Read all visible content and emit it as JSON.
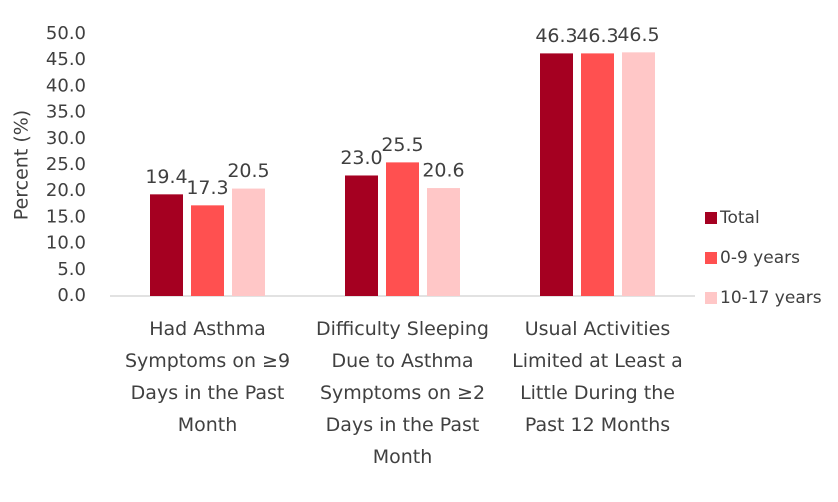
{
  "chart_data": {
    "type": "bar",
    "categories": [
      "Had Asthma Symptoms on ≥9 Days in the Past Month",
      "Difficulty Sleeping Due to Asthma Symptoms on ≥2 Days in the Past Month",
      "Usual Activities Limited at Least a Little During the Past 12 Months"
    ],
    "y_label": "Percent (%)",
    "series": [
      {
        "name": "Total",
        "color": "#a50021",
        "values": [
          19.4,
          23.0,
          46.3
        ],
        "value_labels": [
          "19.4",
          "23.0",
          "46.3"
        ]
      },
      {
        "name": "0-9 years",
        "color": "#ff5050",
        "values": [
          17.3,
          25.5,
          46.3
        ],
        "value_labels": [
          "17.3",
          "25.5",
          "46.3"
        ]
      },
      {
        "name": "10-17 years",
        "color": "#ffc7c7",
        "values": [
          20.5,
          20.6,
          46.5
        ],
        "value_labels": [
          "20.5",
          "20.6",
          "46.5"
        ]
      }
    ],
    "ylim": [
      0,
      50
    ],
    "yticks": [
      {
        "value": 0,
        "label": "0.0"
      },
      {
        "value": 5,
        "label": "5.0"
      },
      {
        "value": 10,
        "label": "10.0"
      },
      {
        "value": 15,
        "label": "15.0"
      },
      {
        "value": 20,
        "label": "20.0"
      },
      {
        "value": 25,
        "label": "25.0"
      },
      {
        "value": 30,
        "label": "30.0"
      },
      {
        "value": 35,
        "label": "35.0"
      },
      {
        "value": 40,
        "label": "40.0"
      },
      {
        "value": 45,
        "label": "45.0"
      },
      {
        "value": 50,
        "label": "50.0"
      }
    ],
    "grid": false,
    "legend": "right"
  }
}
